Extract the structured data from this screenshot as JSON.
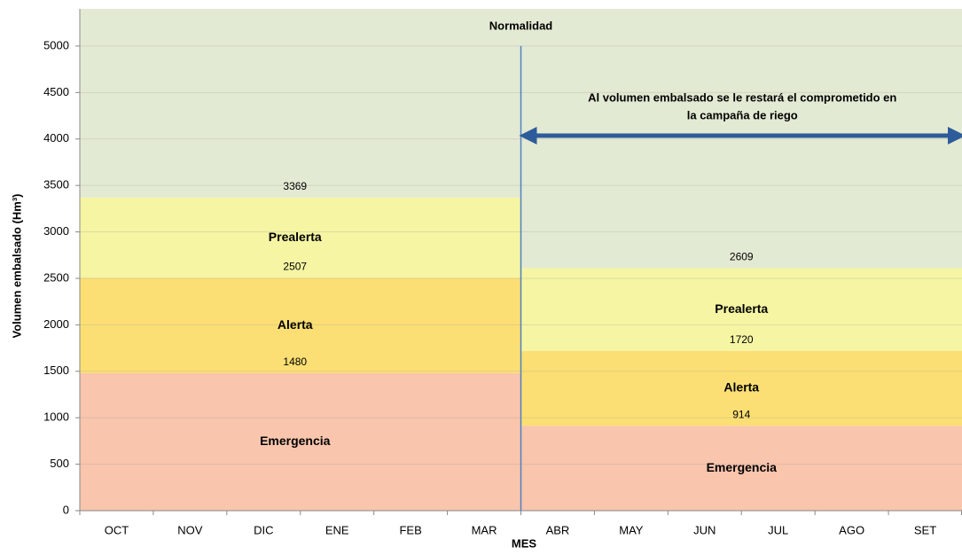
{
  "chart_data": {
    "type": "band",
    "y_label": "Volumen embalsado (Hm³)",
    "x_label": "MES",
    "ylim": [
      0,
      5400
    ],
    "yticks": [
      0,
      500,
      1000,
      1500,
      2000,
      2500,
      3000,
      3500,
      4000,
      4500,
      5000
    ],
    "grid": true,
    "top_zone": {
      "name": "Normalidad",
      "color": "#e3ead3"
    },
    "periods": [
      {
        "categories": [
          "OCT",
          "NOV",
          "DIC",
          "ENE",
          "FEB",
          "MAR"
        ],
        "zones": [
          {
            "name": "Emergencia",
            "color": "#f9c5ad",
            "upper": 1480
          },
          {
            "name": "Alerta",
            "color": "#fbdf74",
            "upper": 2507
          },
          {
            "name": "Prealerta",
            "color": "#f5f5a3",
            "upper": 3369
          }
        ]
      },
      {
        "categories": [
          "ABR",
          "MAY",
          "JUN",
          "JUL",
          "AGO",
          "SET"
        ],
        "zones": [
          {
            "name": "Emergencia",
            "color": "#f9c5ad",
            "upper": 914
          },
          {
            "name": "Alerta",
            "color": "#fbdf74",
            "upper": 1720
          },
          {
            "name": "Prealerta",
            "color": "#f5f5a3",
            "upper": 2609
          }
        ]
      }
    ],
    "annotation": [
      "Al volumen embalsado se le restará el comprometido en",
      "la campaña de riego"
    ],
    "divider_color": "#4f81bd",
    "arrow_color": "#2e5c9a"
  }
}
